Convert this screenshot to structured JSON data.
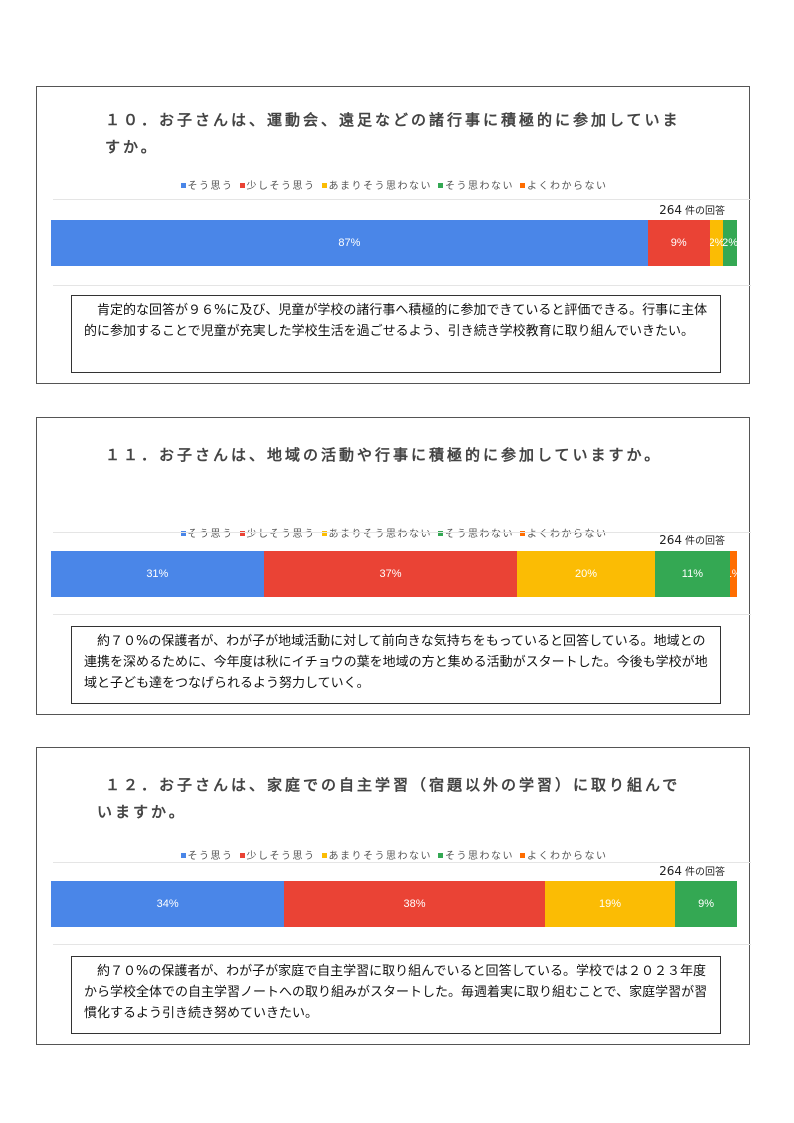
{
  "legend": [
    {
      "label": "そう思う",
      "color": "#4a86e8"
    },
    {
      "label": "少しそう思う",
      "color": "#ea4335"
    },
    {
      "label": "あまりそう思わない",
      "color": "#fbbc04"
    },
    {
      "label": "そう思わない",
      "color": "#34a853"
    },
    {
      "label": "よくわからない",
      "color": "#ff6d01"
    }
  ],
  "sections": [
    {
      "title_line1": "１０．お子さんは、運動会、遠足などの諸行事に積極的に参加していま",
      "title_line2": "すか。",
      "response_count": "264",
      "response_unit": "件の回答",
      "segments": [
        {
          "label": "87%",
          "value": 87
        },
        {
          "label": "9%",
          "value": 9
        },
        {
          "label": "2%",
          "value": 2
        },
        {
          "label": "2%",
          "value": 2
        },
        {
          "label": "0%",
          "value": 0
        }
      ],
      "comment": "　肯定的な回答が９６%に及び、児童が学校の諸行事へ積極的に参加できていると評価できる。行事に主体的に参加することで児童が充実した学校生活を過ごせるよう、引き続き学校教育に取り組んでいきたい。"
    },
    {
      "title_line1": "１１．お子さんは、地域の活動や行事に積極的に参加していますか。",
      "title_line2": "",
      "response_count": "264",
      "response_unit": "件の回答",
      "segments": [
        {
          "label": "31%",
          "value": 31
        },
        {
          "label": "37%",
          "value": 37
        },
        {
          "label": "20%",
          "value": 20
        },
        {
          "label": "11%",
          "value": 11
        },
        {
          "label": "1%",
          "value": 1
        }
      ],
      "comment": "　約７０%の保護者が、わが子が地域活動に対して前向きな気持ちをもっていると回答している。地域との連携を深めるために、今年度は秋にイチョウの葉を地域の方と集める活動がスタートした。今後も学校が地域と子ども達をつなげられるよう努力していく。"
    },
    {
      "title_line1": "１２．お子さんは、家庭での自主学習（宿題以外の学習）に取り組んで",
      "title_line2": "いますか。",
      "response_count": "264",
      "response_unit": "件の回答",
      "segments": [
        {
          "label": "34%",
          "value": 34
        },
        {
          "label": "38%",
          "value": 38
        },
        {
          "label": "19%",
          "value": 19
        },
        {
          "label": "9%",
          "value": 9
        },
        {
          "label": "0%",
          "value": 0
        }
      ],
      "comment": "　約７０%の保護者が、わが子が家庭で自主学習に取り組んでいると回答している。学校では２０２３年度から学校全体での自主学習ノートへの取り組みがスタートした。毎週着実に取り組むことで、家庭学習が習慣化するよう引き続き努めていきたい。"
    }
  ]
}
